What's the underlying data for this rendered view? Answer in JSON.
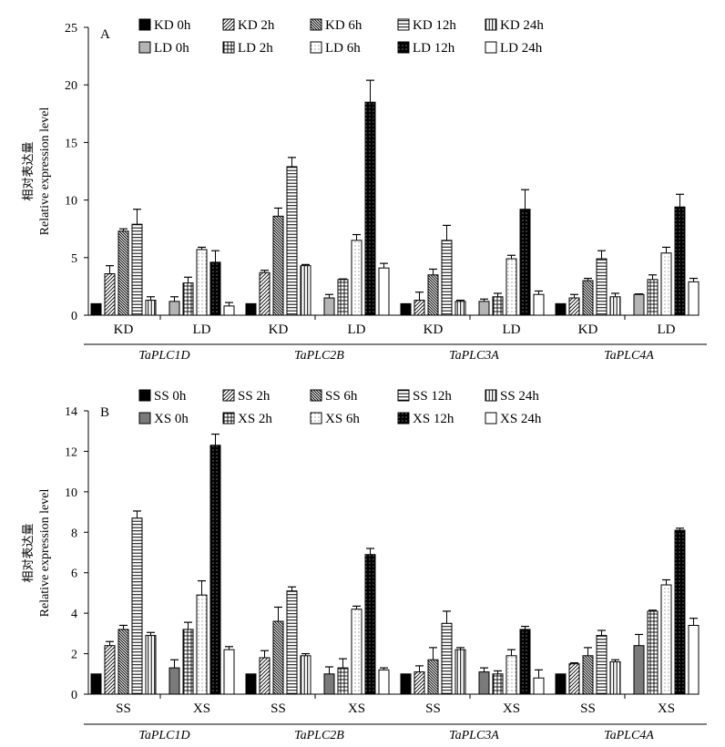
{
  "chart_data": [
    {
      "type": "bar",
      "panel": "A",
      "ylabel_cn": "相对表达量",
      "ylabel": "Relative expression level",
      "ylim": [
        0,
        25
      ],
      "yticks": [
        0,
        5,
        10,
        15,
        20,
        25
      ],
      "genes": [
        "TaPLC1D",
        "TaPLC2B",
        "TaPLC3A",
        "TaPLC4A"
      ],
      "conditions": [
        "KD",
        "LD"
      ],
      "timepoints": [
        "0h",
        "2h",
        "6h",
        "12h",
        "24h"
      ],
      "legend": [
        "KD 0h",
        "KD 2h",
        "KD 6h",
        "KD 12h",
        "KD 24h",
        "LD 0h",
        "LD 2h",
        "LD 6h",
        "LD 12h",
        "LD 24h"
      ],
      "series": [
        {
          "name": "KD 0h",
          "values": [
            1.0,
            1.0,
            1.0,
            1.0
          ],
          "errors": [
            0,
            0,
            0,
            0
          ]
        },
        {
          "name": "KD 2h",
          "values": [
            3.6,
            3.7,
            1.3,
            1.5
          ],
          "errors": [
            0.7,
            0.2,
            0.7,
            0.3
          ]
        },
        {
          "name": "KD 6h",
          "values": [
            7.3,
            8.6,
            3.5,
            3.0
          ],
          "errors": [
            0.2,
            0.7,
            0.5,
            0.2
          ]
        },
        {
          "name": "KD 12h",
          "values": [
            7.9,
            12.9,
            6.5,
            4.9
          ],
          "errors": [
            1.3,
            0.8,
            1.3,
            0.7
          ]
        },
        {
          "name": "KD 24h",
          "values": [
            1.3,
            4.3,
            1.2,
            1.6
          ],
          "errors": [
            0.3,
            0.1,
            0.1,
            0.3
          ]
        },
        {
          "name": "LD 0h",
          "values": [
            1.2,
            1.5,
            1.2,
            1.8
          ],
          "errors": [
            0.4,
            0.3,
            0.2,
            0.05
          ]
        },
        {
          "name": "LD 2h",
          "values": [
            2.8,
            3.1,
            1.6,
            3.1
          ],
          "errors": [
            0.5,
            0.05,
            0.3,
            0.4
          ]
        },
        {
          "name": "LD 6h",
          "values": [
            5.7,
            6.5,
            4.9,
            5.4
          ],
          "errors": [
            0.2,
            0.5,
            0.3,
            0.5
          ]
        },
        {
          "name": "LD 12h",
          "values": [
            4.6,
            18.5,
            9.2,
            9.4
          ],
          "errors": [
            1.0,
            1.9,
            1.7,
            1.1
          ]
        },
        {
          "name": "LD 24h",
          "values": [
            0.8,
            4.1,
            1.8,
            2.9
          ],
          "errors": [
            0.3,
            0.4,
            0.3,
            0.3
          ]
        }
      ]
    },
    {
      "type": "bar",
      "panel": "B",
      "ylabel_cn": "相对表达量",
      "ylabel": "Relative expression level",
      "ylim": [
        0,
        14
      ],
      "yticks": [
        0,
        2,
        4,
        6,
        8,
        10,
        12,
        14
      ],
      "genes": [
        "TaPLC1D",
        "TaPLC2B",
        "TaPLC3A",
        "TaPLC4A"
      ],
      "conditions": [
        "SS",
        "XS"
      ],
      "timepoints": [
        "0h",
        "2h",
        "6h",
        "12h",
        "24h"
      ],
      "legend": [
        "SS 0h",
        "SS 2h",
        "SS 6h",
        "SS 12h",
        "SS 24h",
        "XS 0h",
        "XS 2h",
        "XS 6h",
        "XS 12h",
        "XS 24h"
      ],
      "series": [
        {
          "name": "SS 0h",
          "values": [
            1.0,
            1.0,
            1.0,
            1.0
          ],
          "errors": [
            0,
            0,
            0,
            0
          ]
        },
        {
          "name": "SS 2h",
          "values": [
            2.4,
            1.8,
            1.1,
            1.5
          ],
          "errors": [
            0.2,
            0.35,
            0.3,
            0.05
          ]
        },
        {
          "name": "SS 6h",
          "values": [
            3.2,
            3.6,
            1.7,
            1.9
          ],
          "errors": [
            0.2,
            0.7,
            0.6,
            0.4
          ]
        },
        {
          "name": "SS 12h",
          "values": [
            8.7,
            5.1,
            3.5,
            2.9
          ],
          "errors": [
            0.35,
            0.2,
            0.6,
            0.25
          ]
        },
        {
          "name": "SS 24h",
          "values": [
            2.9,
            1.9,
            2.2,
            1.6
          ],
          "errors": [
            0.15,
            0.1,
            0.1,
            0.1
          ]
        },
        {
          "name": "XS 0h",
          "values": [
            1.3,
            1.0,
            1.1,
            2.4
          ],
          "errors": [
            0.4,
            0.35,
            0.2,
            0.55
          ]
        },
        {
          "name": "XS 2h",
          "values": [
            3.2,
            1.3,
            1.0,
            4.1
          ],
          "errors": [
            0.35,
            0.45,
            0.15,
            0.05
          ]
        },
        {
          "name": "XS 6h",
          "values": [
            4.9,
            4.2,
            1.9,
            5.4
          ],
          "errors": [
            0.7,
            0.15,
            0.3,
            0.25
          ]
        },
        {
          "name": "XS 12h",
          "values": [
            12.3,
            6.9,
            3.2,
            8.1
          ],
          "errors": [
            0.55,
            0.3,
            0.15,
            0.1
          ]
        },
        {
          "name": "XS 24h",
          "values": [
            2.2,
            1.2,
            0.8,
            3.4
          ],
          "errors": [
            0.15,
            0.1,
            0.4,
            0.35
          ]
        }
      ]
    }
  ]
}
